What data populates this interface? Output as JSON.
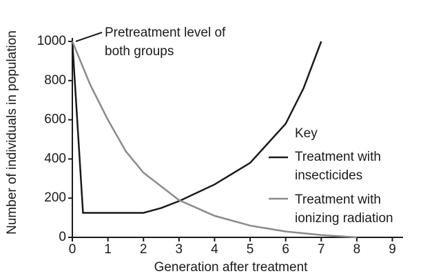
{
  "chart_data": {
    "type": "line",
    "annotation": "Pretreatment level of both groups",
    "legend_title": "Key",
    "x_label": "Generation after treatment",
    "y_label": "Number of individuals in population",
    "xlim": [
      0,
      9.3
    ],
    "xticks": [
      0,
      1,
      2,
      3,
      4,
      5,
      6,
      7,
      8,
      9
    ],
    "ylim": [
      0,
      1000
    ],
    "yticks": [
      0,
      200,
      400,
      600,
      800,
      1000
    ],
    "grid": false,
    "series": [
      {
        "name": "Treatment with insecticides",
        "color": "#1a1a1a",
        "x": [
          0,
          0.3,
          2,
          2.5,
          3,
          4,
          5,
          6,
          6.5,
          7
        ],
        "values": [
          1000,
          125,
          125,
          150,
          185,
          270,
          380,
          580,
          760,
          1000
        ]
      },
      {
        "name": "Treatment with ionizing radiation",
        "color": "#8a8a8a",
        "x": [
          0,
          0.5,
          1,
          1.5,
          2,
          3,
          4,
          5,
          6,
          7,
          8
        ],
        "values": [
          1000,
          780,
          600,
          440,
          330,
          190,
          110,
          60,
          30,
          12,
          0
        ]
      }
    ]
  }
}
